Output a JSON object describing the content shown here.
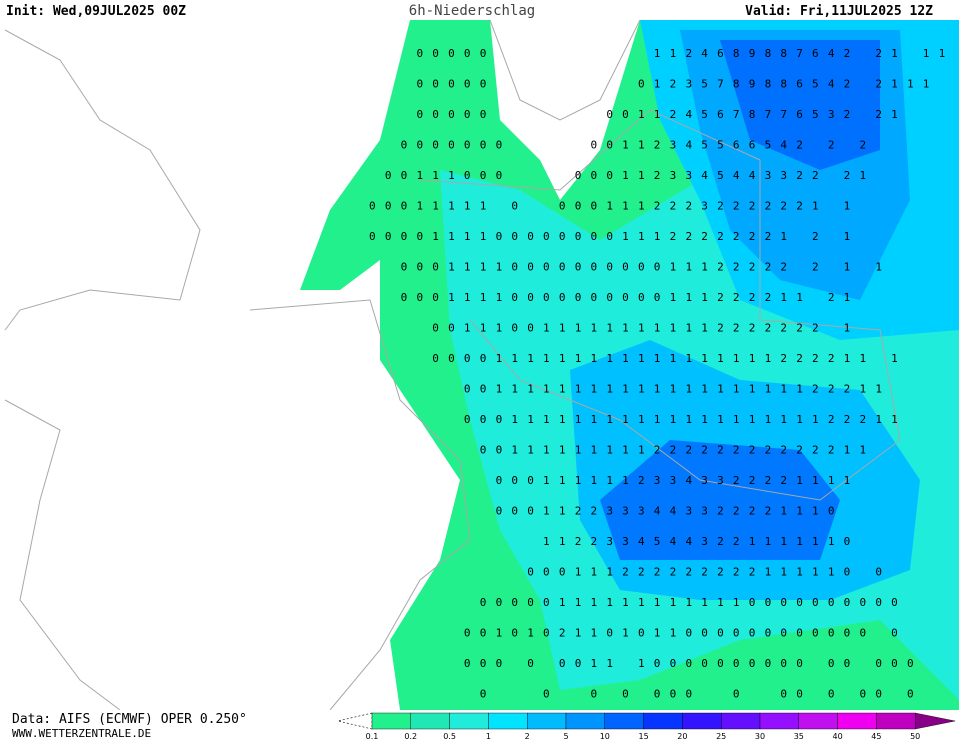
{
  "header": {
    "init": "Init: Wed,09JUL2025 00Z",
    "title": "6h-Niederschlag",
    "valid": "Valid: Fri,11JUL2025 12Z"
  },
  "footer": {
    "source": "Data: AIFS (ECMWF) OPER 0.250°",
    "site": "WWW.WETTERZENTRALE.DE"
  },
  "legend": {
    "labels": [
      0.1,
      0.2,
      0.5,
      1,
      2,
      5,
      10,
      15,
      20,
      25,
      30,
      35,
      40,
      45,
      50
    ],
    "colors": [
      "#22f08c",
      "#20e8b4",
      "#20ecdc",
      "#00e4ff",
      "#00bcff",
      "#0094ff",
      "#0064ff",
      "#0834ff",
      "#3414ff",
      "#6410ff",
      "#9410ff",
      "#c010f0",
      "#f000f0",
      "#c000c0",
      "#880088"
    ]
  },
  "grid": {
    "rows": [
      "   00000          1124689887642 21 11",
      "   00000         01235789886542 2111",
      "   00000       0011245678776532 21",
      "  0000000     00112345566542 2 2",
      " 00111000    0001123345443322 21",
      "00011111 0  00011122232222221 1",
      "000011110000000011122222221 2 1",
      "  0001111000000000011122222 2 1 1",
      "  00011110000000000111222211 21",
      "    0011100111111111112222222 1",
      "    0000111111111111111111222211 1",
      "      001111111111111111111122211",
      "      0001111111111111111111122211",
      "       0011111111122222222222211",
      "        00011111123343322221111",
      "        0001122333443322221110",
      "           11223345443221111110",
      "          000111222222222111110 0",
      "       000001111111111110000000000",
      "      00101021101011000000000000 0",
      "      000 0 0011 10000000000 00 000",
      "       0   0  0 0 000  0  00 0 00 0"
    ]
  }
}
